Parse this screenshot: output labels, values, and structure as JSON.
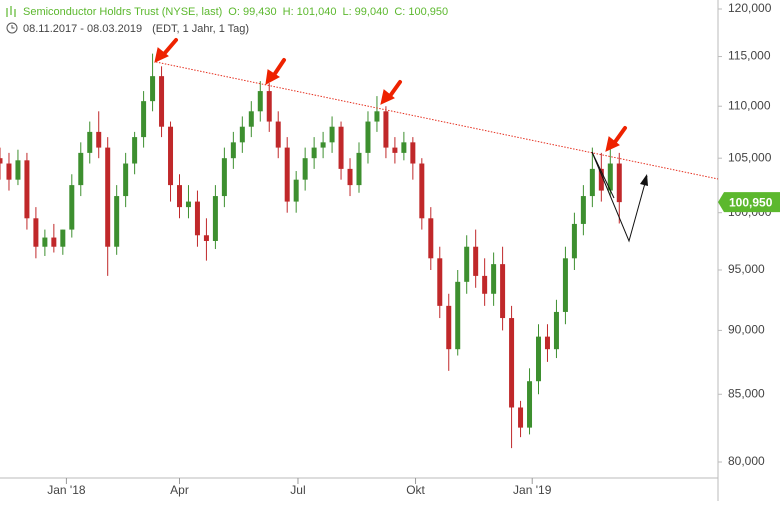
{
  "chart_data": {
    "type": "candlestick",
    "title": "Semiconductor Holdrs Trust (NYSE, last)",
    "quote": [
      "O: 99,430",
      "H: 101,040",
      "L: 99,040",
      "C: 100,950"
    ],
    "period": "08.11.2017 - 08.03.2019",
    "subtitle": "(EDT, 1 Jahr, 1 Tag)",
    "log_scale": true,
    "up_color": "#3d8f2f",
    "down_color": "#c0282a",
    "open": [
      105000,
      104500,
      103000,
      104800,
      99500,
      97000,
      97800,
      97000,
      98500,
      102500,
      105500,
      107500,
      106000,
      97000,
      101500,
      104500,
      107000,
      110500,
      113000,
      108000,
      102500,
      100500,
      101000,
      98000,
      97500,
      101500,
      105000,
      106500,
      108000,
      109500,
      111500,
      108500,
      106000,
      101000,
      103000,
      105000,
      106000,
      106500,
      108000,
      104000,
      102500,
      105500,
      108500,
      109500,
      106000,
      105500,
      106500,
      104500,
      99500,
      96000,
      92000,
      88500,
      94000,
      97000,
      94500,
      93000,
      95500,
      91000,
      84000,
      82500,
      86000,
      89500,
      88500,
      91500,
      96000,
      99000,
      101500,
      104000,
      102000,
      104500
    ],
    "high": [
      106000,
      105500,
      105800,
      105500,
      100500,
      98500,
      99000,
      98500,
      103500,
      106500,
      108500,
      109500,
      107000,
      102500,
      105500,
      107500,
      111500,
      115300,
      114000,
      108500,
      103500,
      102500,
      102000,
      99500,
      102500,
      106000,
      107500,
      109000,
      110500,
      112500,
      112300,
      109500,
      107000,
      103800,
      106000,
      107000,
      107500,
      109000,
      108500,
      105000,
      106500,
      109500,
      111000,
      110000,
      107000,
      107500,
      107000,
      105000,
      100500,
      97000,
      93000,
      95000,
      98000,
      98500,
      96000,
      96500,
      97000,
      92000,
      84500,
      87000,
      90500,
      90500,
      92500,
      97000,
      100000,
      102500,
      106000,
      105500,
      106300,
      105500
    ],
    "low": [
      103000,
      102000,
      102500,
      98500,
      96000,
      96200,
      96500,
      96300,
      97800,
      101500,
      104500,
      105000,
      94500,
      96300,
      100500,
      103500,
      106000,
      109500,
      107000,
      101000,
      99500,
      99500,
      97000,
      95800,
      96800,
      100500,
      104000,
      105500,
      107000,
      108500,
      107500,
      105000,
      100000,
      100000,
      102000,
      104000,
      105000,
      105500,
      103000,
      101500,
      101800,
      104500,
      107500,
      105000,
      104500,
      104800,
      103000,
      98500,
      95000,
      91000,
      86800,
      88000,
      93000,
      93500,
      92000,
      92000,
      90000,
      81000,
      81800,
      82000,
      85000,
      87500,
      87800,
      90500,
      95000,
      98000,
      100500,
      101000,
      101500,
      99040
    ],
    "close": [
      104500,
      103000,
      104800,
      99500,
      97000,
      97800,
      97000,
      98500,
      102500,
      105500,
      107500,
      106000,
      97000,
      101500,
      104500,
      107000,
      110500,
      113000,
      108000,
      102500,
      100500,
      101000,
      98000,
      97500,
      101500,
      105000,
      106500,
      108000,
      109500,
      111500,
      108500,
      106000,
      101000,
      103000,
      105000,
      106000,
      106500,
      108000,
      104000,
      102500,
      105500,
      108500,
      109500,
      106000,
      105500,
      106500,
      104500,
      99500,
      96000,
      92000,
      88500,
      94000,
      97000,
      94500,
      93000,
      95500,
      91000,
      84000,
      82500,
      86000,
      89500,
      88500,
      91500,
      96000,
      99000,
      101500,
      104000,
      102000,
      104500,
      100950
    ],
    "xlim": [
      0,
      80
    ],
    "xticks": [
      {
        "value": 7.4,
        "label": "Jan '18"
      },
      {
        "value": 20,
        "label": "Apr"
      },
      {
        "value": 33.2,
        "label": "Jul"
      },
      {
        "value": 46.3,
        "label": "Okt"
      },
      {
        "value": 59.3,
        "label": "Jan '19"
      }
    ],
    "ylim": [
      80000,
      120000
    ],
    "yticks": [
      {
        "value": 80000,
        "label": "80,000"
      },
      {
        "value": 85000,
        "label": "85,000"
      },
      {
        "value": 90000,
        "label": "90,000"
      },
      {
        "value": 95000,
        "label": "95,000"
      },
      {
        "value": 100000,
        "label": "100,000"
      },
      {
        "value": 105000,
        "label": "105,000"
      },
      {
        "value": 110000,
        "label": "110,000"
      },
      {
        "value": 115000,
        "label": "115,000"
      },
      {
        "value": 120000,
        "label": "120,000"
      }
    ],
    "last_price": {
      "value": 100950,
      "label": "100,950"
    },
    "last_price_color": "#5cb82e"
  }
}
